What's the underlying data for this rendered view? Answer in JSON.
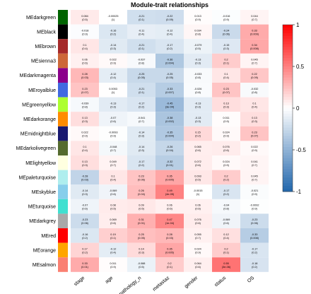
{
  "chart_data": {
    "type": "heatmap",
    "title": "Module-trait relationships",
    "columns": [
      "stage",
      "age",
      "pathology_n",
      "metastaz",
      "gender",
      "status",
      "OS"
    ],
    "rows": [
      {
        "name": "MEdarkgreen",
        "color": "#006400",
        "r": [
          0.084,
          -0.00025,
          -0.21,
          -0.22,
          0.013,
          -0.016,
          0.044
        ],
        "p": [
          "(0.5)",
          "(1)",
          "(0.1)",
          "(0.09)",
          "(0.9)",
          "(0.9)",
          "(0.7)"
        ]
      },
      {
        "name": "MEblack",
        "color": "#000000",
        "r": [
          -0.018,
          -0.16,
          -0.11,
          -0.12,
          0.034,
          -0.24,
          0.33
        ],
        "p": [
          "(0.9)",
          "(0.2)",
          "(0.4)",
          "(0.4)",
          "(0.8)",
          "(0.06)",
          "(0.009)"
        ]
      },
      {
        "name": "MEbrown",
        "color": "#a52a2a",
        "r": [
          0.1,
          -0.14,
          -0.21,
          -0.17,
          -0.079,
          -0.15,
          0.34
        ],
        "p": [
          "(0.4)",
          "(0.3)",
          "(0.1)",
          "(0.2)",
          "(0.5)",
          "(0.3)",
          "(0.008)"
        ]
      },
      {
        "name": "MEsienna3",
        "color": "#cd6839",
        "r": [
          0.06,
          0.022,
          -0.037,
          -0.36,
          -0.13,
          0.2,
          0.045
        ],
        "p": [
          "(0.6)",
          "(0.9)",
          "(0.8)",
          "(0.004)",
          "(0.3)",
          "(0.1)",
          "(0.7)"
        ]
      },
      {
        "name": "MEdarkmagenta",
        "color": "#8b008b",
        "r": [
          0.28,
          -0.12,
          -0.25,
          -0.25,
          -0.033,
          0.1,
          0.22
        ],
        "p": [
          "(0.03)",
          "(0.4)",
          "(0.05)",
          "(0.05)",
          "(0.8)",
          "(0.4)",
          "(0.09)"
        ]
      },
      {
        "name": "MEroyalblue",
        "color": "#4169e1",
        "r": [
          0.23,
          0.0053,
          -0.21,
          -0.33,
          -0.026,
          0.23,
          -0.032
        ],
        "p": [
          "(0.07)",
          "(1)",
          "(0.1)",
          "(0.007)",
          "(0.8)",
          "(0.07)",
          "(0.8)"
        ]
      },
      {
        "name": "MEgreenyellow",
        "color": "#adff2f",
        "r": [
          -0.039,
          -0.13,
          -0.17,
          -0.45,
          -0.13,
          0.13,
          0.1
        ],
        "p": [
          "(0.8)",
          "(0.3)",
          "(0.2)",
          "(3e-04)",
          "(0.3)",
          "(0.3)",
          "(0.4)"
        ]
      },
      {
        "name": "MEdarkorange",
        "color": "#ff8c00",
        "r": [
          0.13,
          -0.07,
          -0.041,
          -0.38,
          -0.13,
          0.011,
          0.13
        ],
        "p": [
          "(0.3)",
          "(0.6)",
          "(0.7)",
          "(0.002)",
          "(0.3)",
          "(0.9)",
          "(0.3)"
        ]
      },
      {
        "name": "MEmidnightblue",
        "color": "#191970",
        "r": [
          0.022,
          -0.0093,
          -0.14,
          -0.35,
          0.15,
          0.024,
          0.23
        ],
        "p": [
          "(0.9)",
          "(0.9)",
          "(0.3)",
          "(0.004)",
          "(0.2)",
          "(0.9)",
          "(0.07)"
        ]
      },
      {
        "name": "MEdarkolivegreen",
        "color": "#556b2f",
        "r": [
          0.1,
          -0.048,
          -0.14,
          -0.26,
          0.065,
          0.076,
          0.022
        ],
        "p": [
          "(0.4)",
          "(0.7)",
          "(0.3)",
          "(0.04)",
          "(0.6)",
          "(0.6)",
          "(0.9)"
        ]
      },
      {
        "name": "MElightyellow",
        "color": "#ffffe0",
        "r": [
          0.13,
          0.049,
          -0.17,
          -0.32,
          0.072,
          0.024,
          0.041
        ],
        "p": [
          "(0.3)",
          "(0.7)",
          "(0.2)",
          "(0.01)",
          "(0.6)",
          "(0.9)",
          "(0.7)"
        ]
      },
      {
        "name": "MEpaleturquoise",
        "color": "#afeeee",
        "r": [
          -0.28,
          0.1,
          0.23,
          0.35,
          0.093,
          0.2,
          0.045
        ],
        "p": [
          "(0.03)",
          "(0.4)",
          "(0.06)",
          "(0.005)",
          "(0.5)",
          "(0.2)",
          "(0.7)"
        ]
      },
      {
        "name": "MEskyblue",
        "color": "#87ceeb",
        "r": [
          -0.14,
          -0.069,
          0.26,
          0.49,
          -0.0015,
          -0.17,
          -0.021
        ],
        "p": [
          "(0.3)",
          "(0.6)",
          "(0.04)",
          "(4e-05)",
          "(1)",
          "(0.2)",
          "(0.9)"
        ]
      },
      {
        "name": "MEturquoise",
        "color": "#40e0d0",
        "r": [
          -0.07,
          0.08,
          0.09,
          0.06,
          0.06,
          -0.04,
          -0.0092
        ],
        "p": [
          "(0.6)",
          "(0.5)",
          "(0.5)",
          "(0.6)",
          "(0.6)",
          "(0.8)",
          "(0.9)"
        ]
      },
      {
        "name": "MEdarkgrey",
        "color": "#a9a9a9",
        "r": [
          -0.23,
          0.069,
          0.31,
          0.47,
          0.076,
          -0.069,
          -0.23
        ],
        "p": [
          "(0.06)",
          "(0.6)",
          "(0.01)",
          "(1e-04)",
          "(0.6)",
          "(0.6)",
          "(0.06)"
        ]
      },
      {
        "name": "MEred",
        "color": "#ff0000",
        "r": [
          -0.16,
          0.19,
          0.25,
          0.28,
          0.055,
          0.12,
          -0.33
        ],
        "p": [
          "(0.2)",
          "(0.1)",
          "(0.05)",
          "(0.03)",
          "(0.7)",
          "(0.4)",
          "(0.008)"
        ]
      },
      {
        "name": "MEorange",
        "color": "#ffa500",
        "r": [
          0.17,
          -0.12,
          0.14,
          0.35,
          0.024,
          0.2,
          -0.17
        ],
        "p": [
          "(0.2)",
          "(0.4)",
          "(0.3)",
          "(0.005)",
          "(0.9)",
          "(0.1)",
          "(0.2)"
        ]
      },
      {
        "name": "MEsalmon",
        "color": "#fa8072",
        "r": [
          0.33,
          0.011,
          -0.088,
          0.2,
          0.064,
          0.55,
          -0.18
        ],
        "p": [
          "(0.01)",
          "(0.9)",
          "(0.5)",
          "(0.1)",
          "(0.6)",
          "(3e-06)",
          "(0.2)"
        ]
      }
    ],
    "colorbar": {
      "range": [
        -1,
        1
      ],
      "ticks": [
        "1",
        "0.5",
        "0",
        "-0.5",
        "-1"
      ],
      "low": "#2166ac",
      "mid": "#ffffff",
      "high": "#ff0000"
    }
  }
}
